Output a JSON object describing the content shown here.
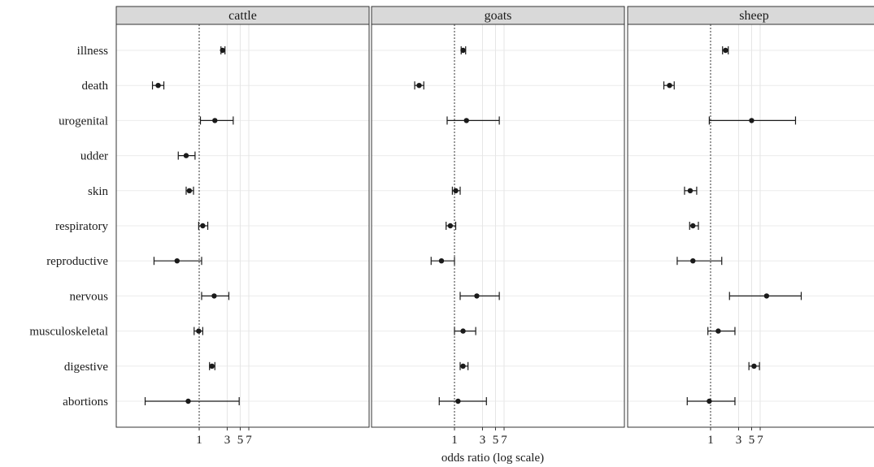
{
  "chart_data": {
    "type": "forest",
    "xlabel": "odds ratio (log scale)",
    "x_scale": "log",
    "x_ticks": [
      1,
      3,
      5,
      7
    ],
    "x_range": [
      0.1,
      30
    ],
    "reference_line": 1,
    "categories": [
      "illness",
      "death",
      "urogenital",
      "udder",
      "skin",
      "respiratory",
      "reproductive",
      "nervous",
      "musculoskeletal",
      "digestive",
      "abortions"
    ],
    "panels": [
      {
        "name": "cattle",
        "estimates": [
          {
            "category": "illness",
            "or": 2.5,
            "lo": 2.35,
            "hi": 2.75
          },
          {
            "category": "death",
            "or": 0.2,
            "lo": 0.16,
            "hi": 0.25
          },
          {
            "category": "urogenital",
            "or": 1.85,
            "lo": 1.05,
            "hi": 3.8
          },
          {
            "category": "udder",
            "or": 0.6,
            "lo": 0.44,
            "hi": 0.85
          },
          {
            "category": "skin",
            "or": 0.68,
            "lo": 0.6,
            "hi": 0.8
          },
          {
            "category": "respiratory",
            "or": 1.15,
            "lo": 0.98,
            "hi": 1.4
          },
          {
            "category": "reproductive",
            "or": 0.42,
            "lo": 0.17,
            "hi": 1.1
          },
          {
            "category": "nervous",
            "or": 1.8,
            "lo": 1.1,
            "hi": 3.2
          },
          {
            "category": "musculoskeletal",
            "or": 0.98,
            "lo": 0.82,
            "hi": 1.15
          },
          {
            "category": "digestive",
            "or": 1.65,
            "lo": 1.5,
            "hi": 1.85
          },
          {
            "category": "abortions",
            "or": 0.65,
            "lo": 0.12,
            "hi": 4.8
          }
        ]
      },
      {
        "name": "goats",
        "estimates": [
          {
            "category": "illness",
            "or": 1.4,
            "lo": 1.3,
            "hi": 1.55
          },
          {
            "category": "death",
            "or": 0.25,
            "lo": 0.21,
            "hi": 0.3
          },
          {
            "category": "urogenital",
            "or": 1.6,
            "lo": 0.75,
            "hi": 5.8
          },
          {
            "category": "udder",
            "or": null,
            "lo": null,
            "hi": null
          },
          {
            "category": "skin",
            "or": 1.05,
            "lo": 0.92,
            "hi": 1.25
          },
          {
            "category": "respiratory",
            "or": 0.85,
            "lo": 0.72,
            "hi": 1.05
          },
          {
            "category": "reproductive",
            "or": 0.6,
            "lo": 0.4,
            "hi": 1.0
          },
          {
            "category": "nervous",
            "or": 2.4,
            "lo": 1.25,
            "hi": 5.8
          },
          {
            "category": "musculoskeletal",
            "or": 1.4,
            "lo": 1.0,
            "hi": 2.3
          },
          {
            "category": "digestive",
            "or": 1.4,
            "lo": 1.25,
            "hi": 1.7
          },
          {
            "category": "abortions",
            "or": 1.15,
            "lo": 0.55,
            "hi": 3.5
          }
        ]
      },
      {
        "name": "sheep",
        "estimates": [
          {
            "category": "illness",
            "or": 1.8,
            "lo": 1.6,
            "hi": 2.0
          },
          {
            "category": "death",
            "or": 0.2,
            "lo": 0.16,
            "hi": 0.24
          },
          {
            "category": "urogenital",
            "or": 5.0,
            "lo": 0.95,
            "hi": 28.0
          },
          {
            "category": "udder",
            "or": null,
            "lo": null,
            "hi": null
          },
          {
            "category": "skin",
            "or": 0.45,
            "lo": 0.36,
            "hi": 0.58
          },
          {
            "category": "respiratory",
            "or": 0.5,
            "lo": 0.44,
            "hi": 0.62
          },
          {
            "category": "reproductive",
            "or": 0.5,
            "lo": 0.27,
            "hi": 1.55
          },
          {
            "category": "nervous",
            "or": 9.0,
            "lo": 2.1,
            "hi": 35.0
          },
          {
            "category": "musculoskeletal",
            "or": 1.35,
            "lo": 0.9,
            "hi": 2.6
          },
          {
            "category": "digestive",
            "or": 5.5,
            "lo": 4.5,
            "hi": 6.8
          },
          {
            "category": "abortions",
            "or": 0.95,
            "lo": 0.4,
            "hi": 2.6
          }
        ]
      }
    ]
  }
}
